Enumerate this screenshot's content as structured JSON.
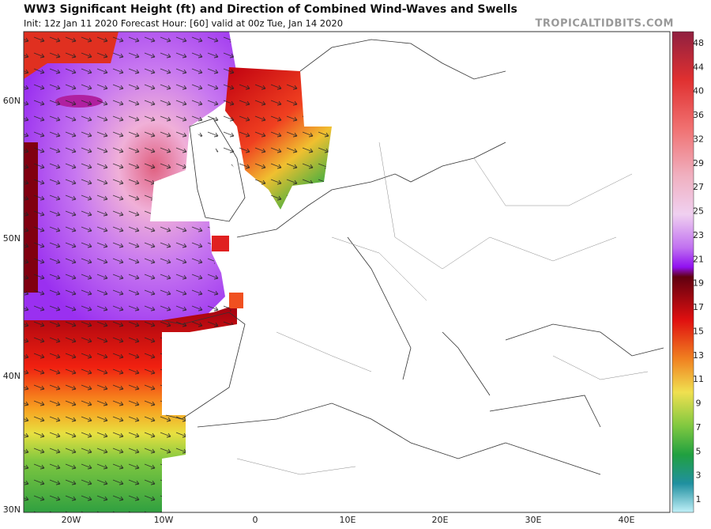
{
  "header": {
    "title": "WW3 Significant Height (ft) and Direction of Combined Wind-Waves and Swells",
    "subtitle": "Init: 12z Jan 11 2020   Forecast Hour: [60]   valid at 00z Tue, Jan 14 2020",
    "watermark": "TROPICALTIDBITS.COM"
  },
  "map": {
    "lat_labels": [
      "60N",
      "50N",
      "40N",
      "30N"
    ],
    "lon_labels": [
      "20W",
      "10W",
      "0",
      "10E",
      "20E",
      "30E",
      "40E"
    ]
  },
  "colorbar": {
    "labels": [
      "48",
      "44",
      "40",
      "36",
      "32",
      "29",
      "27",
      "25",
      "23",
      "21",
      "19",
      "17",
      "15",
      "13",
      "11",
      "9",
      "7",
      "5",
      "3",
      "1"
    ]
  }
}
